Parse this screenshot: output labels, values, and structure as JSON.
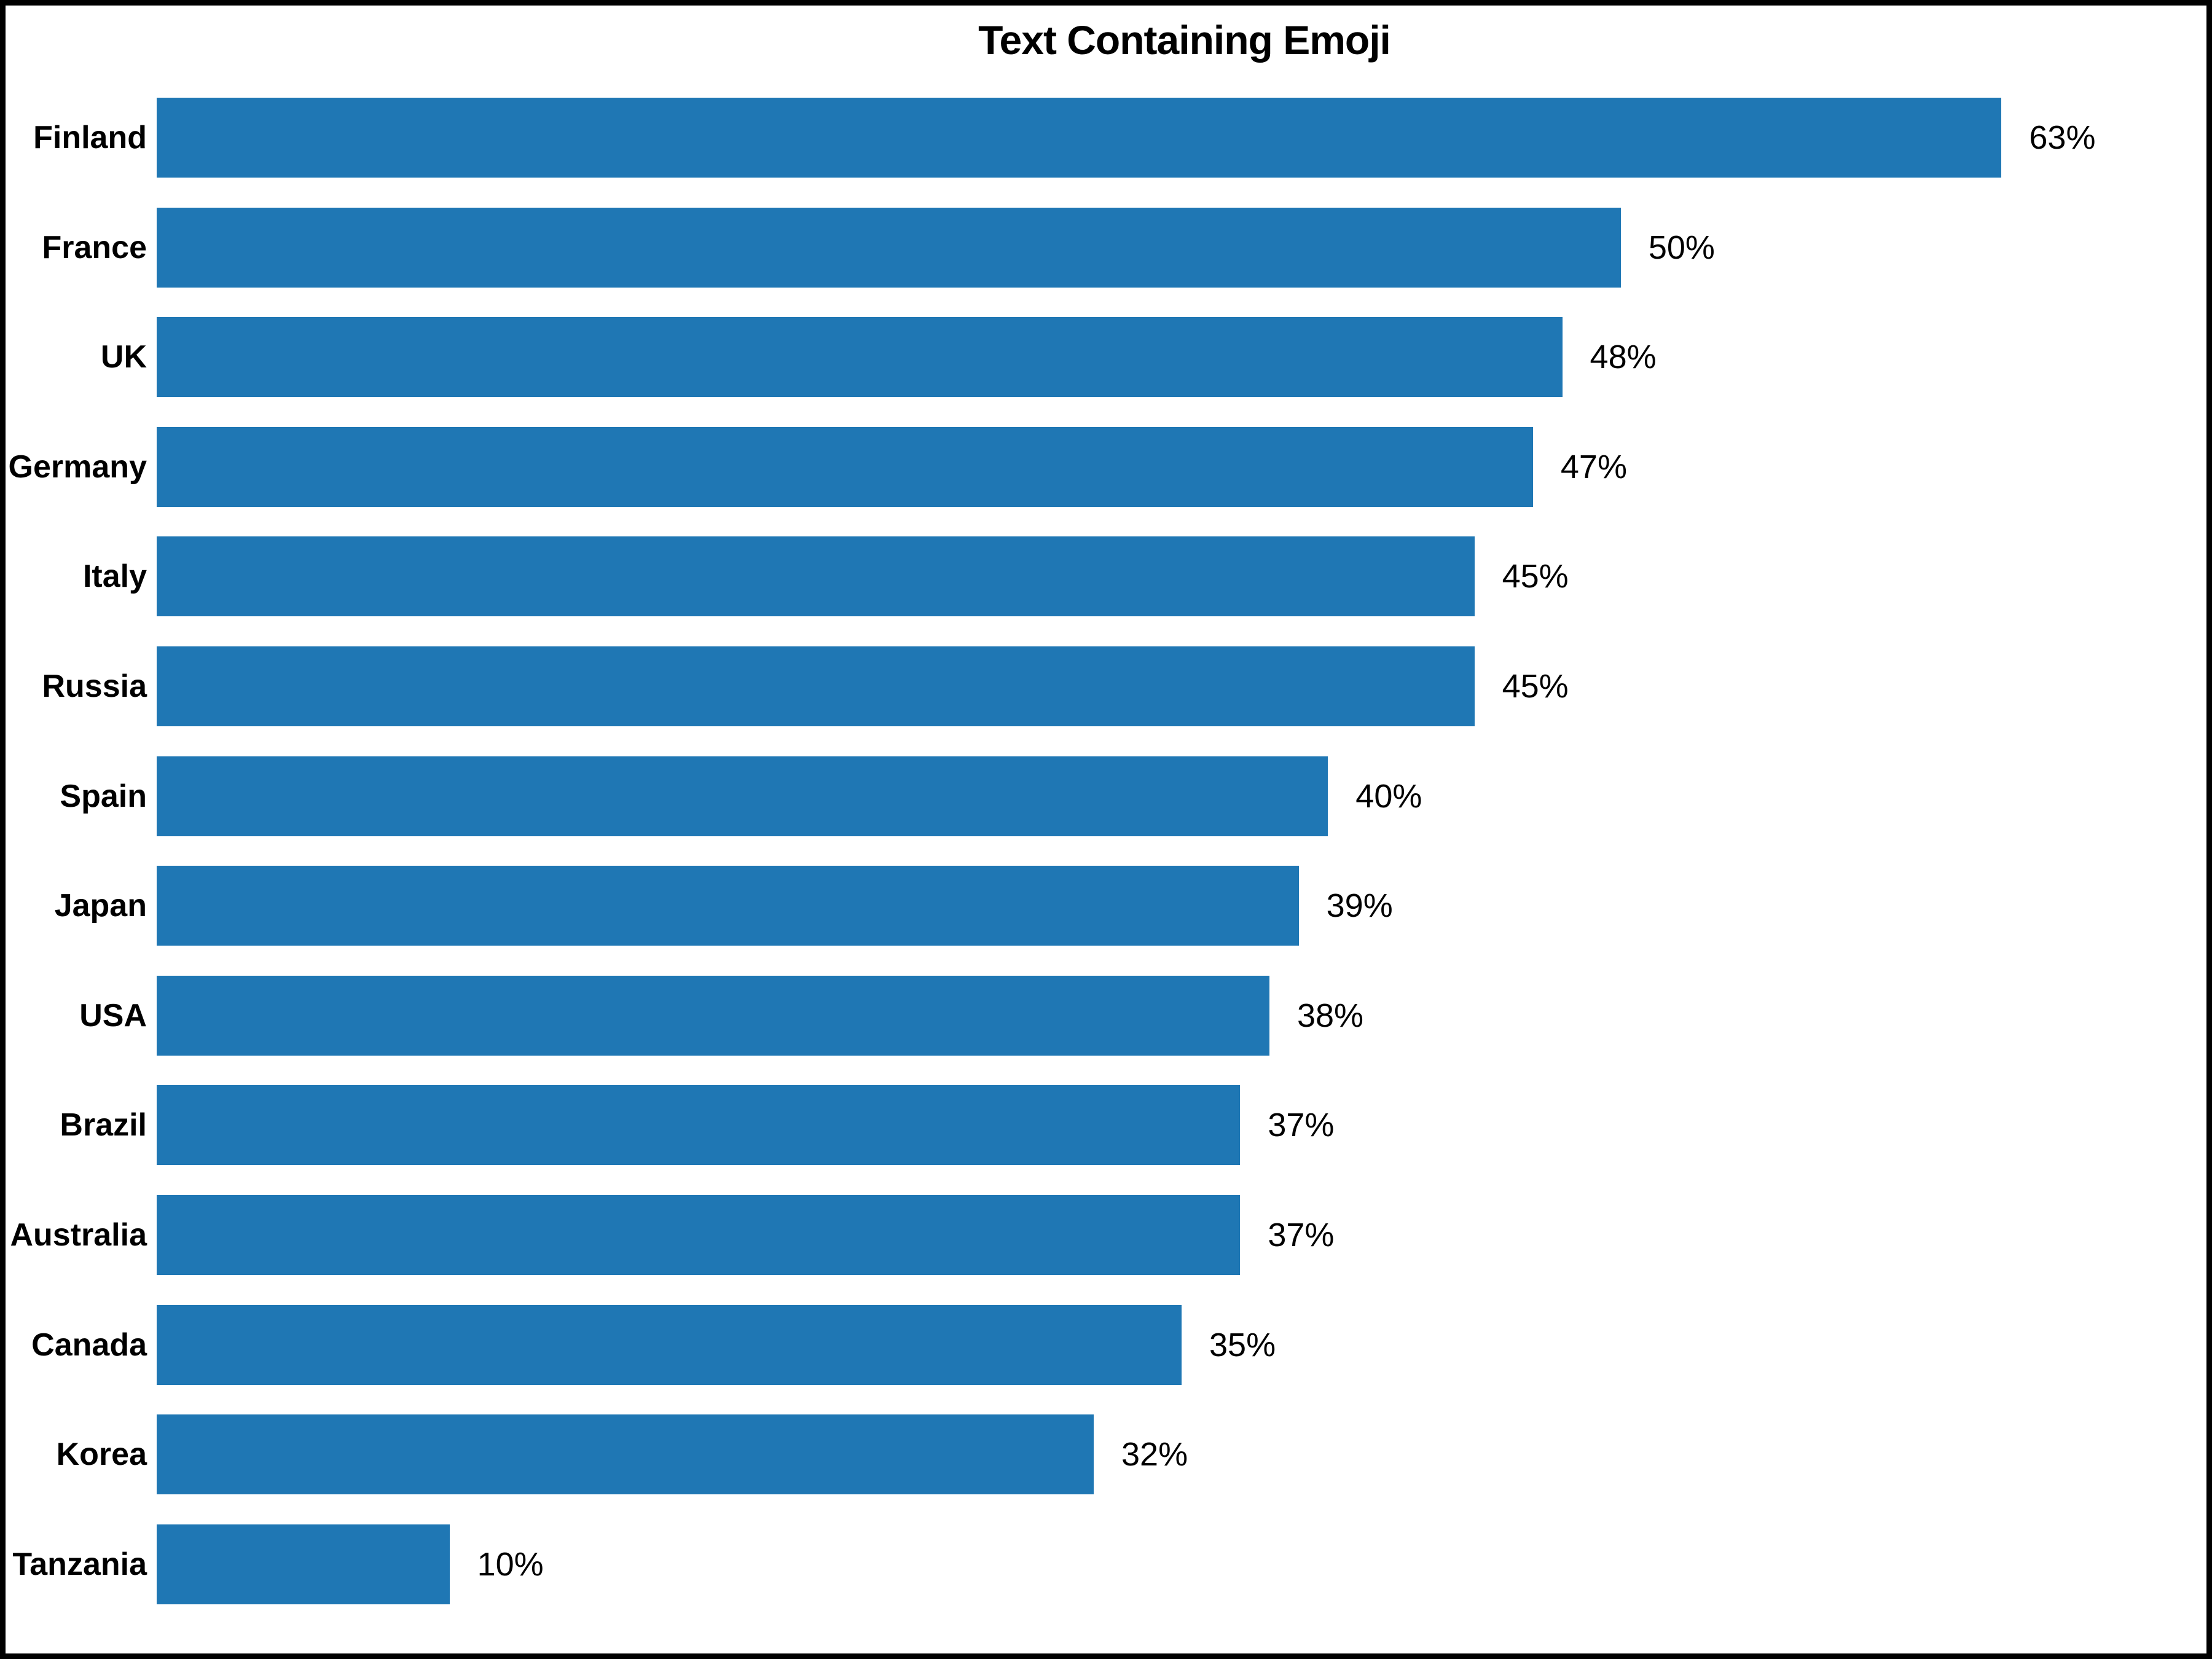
{
  "chart_data": {
    "type": "bar",
    "orientation": "horizontal",
    "title": "Text Containing Emoji",
    "categories": [
      "Finland",
      "France",
      "UK",
      "Germany",
      "Italy",
      "Russia",
      "Spain",
      "Japan",
      "USA",
      "Brazil",
      "Australia",
      "Canada",
      "Korea",
      "Tanzania"
    ],
    "values": [
      63,
      50,
      48,
      47,
      45,
      45,
      40,
      39,
      38,
      37,
      37,
      35,
      32,
      10
    ],
    "value_labels": [
      "63%",
      "50%",
      "48%",
      "47%",
      "45%",
      "45%",
      "40%",
      "39%",
      "38%",
      "37%",
      "37%",
      "35%",
      "32%",
      "10%"
    ],
    "xlabel": "",
    "ylabel": "",
    "xlim": [
      0,
      70
    ],
    "grid": false,
    "legend": null,
    "bar_color": "#1f77b4",
    "text_color": "#000000",
    "frame_color": "#000000",
    "background_color": "#ffffff"
  }
}
